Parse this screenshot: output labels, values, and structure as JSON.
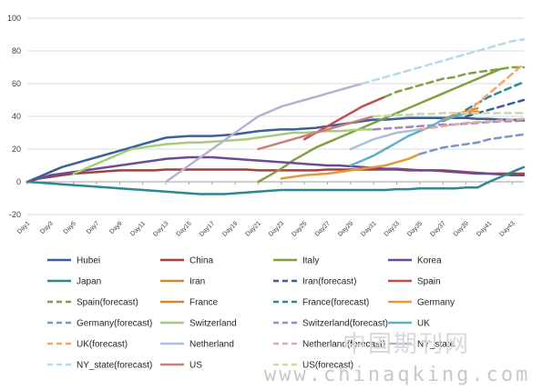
{
  "chart_data": {
    "type": "line",
    "title": "",
    "xlabel": "",
    "ylabel": "",
    "ylim": [
      -20,
      100
    ],
    "yticks": [
      -20,
      0,
      20,
      40,
      60,
      80,
      100
    ],
    "grid": true,
    "legend_position": "bottom",
    "x_tick_labels": [
      "Day1",
      "Day3",
      "Day5",
      "Day7",
      "Day9",
      "Day11",
      "Day13",
      "Day15",
      "Day17",
      "Day19",
      "Day21",
      "Day23",
      "Day25",
      "Day27",
      "Day29",
      "Day31",
      "Day33",
      "Day35",
      "Day37",
      "Day39",
      "Day41",
      "Day43"
    ],
    "x": [
      1,
      2,
      3,
      4,
      5,
      6,
      7,
      8,
      9,
      10,
      11,
      12,
      13,
      14,
      15,
      16,
      17,
      18,
      19,
      20,
      21,
      22,
      23,
      24,
      25,
      26,
      27,
      28,
      29,
      30,
      31,
      32,
      33,
      34,
      35,
      36,
      37,
      38,
      39,
      40,
      41,
      42,
      43,
      44
    ],
    "series": [
      {
        "name": "Hubei",
        "color": "#3a5f9a",
        "dashed": false,
        "values": [
          0,
          3,
          6,
          9,
          11,
          13,
          15,
          17,
          19,
          21,
          23,
          25,
          27,
          27.5,
          28,
          28,
          28,
          28.5,
          29,
          30,
          31,
          31.5,
          32,
          32,
          32.5,
          33,
          34,
          35,
          36,
          37,
          38,
          38,
          38.5,
          39,
          39,
          39,
          39,
          39,
          39,
          38.5,
          38.5,
          38,
          38,
          37.5
        ]
      },
      {
        "name": "China",
        "color": "#a5403c",
        "dashed": false,
        "values": [
          0,
          2,
          3,
          4,
          5,
          5.5,
          6,
          6.5,
          7,
          7,
          7,
          7,
          7.5,
          7.5,
          7.5,
          7.5,
          7.5,
          7.5,
          7.5,
          7.5,
          7,
          7,
          7,
          7,
          7,
          7,
          7.5,
          7.5,
          7.5,
          7.5,
          7.5,
          7.5,
          7.5,
          7,
          7,
          7,
          7,
          6.5,
          6,
          5.5,
          5,
          5,
          5,
          5
        ]
      },
      {
        "name": "Italy",
        "color": "#82a043",
        "dashed": false,
        "values": [
          null,
          null,
          null,
          null,
          null,
          null,
          null,
          null,
          null,
          null,
          null,
          null,
          null,
          null,
          null,
          null,
          null,
          null,
          null,
          null,
          0,
          4,
          8,
          13,
          17,
          21,
          24,
          27,
          30,
          33,
          36,
          39,
          42,
          45,
          48,
          51,
          54,
          57,
          60,
          63,
          66,
          69,
          null,
          null
        ]
      },
      {
        "name": "Korea",
        "color": "#6a4c93",
        "dashed": false,
        "values": [
          0,
          2,
          4,
          5,
          6,
          7,
          8,
          9,
          10,
          11,
          12,
          13,
          14,
          14.5,
          15,
          15,
          15,
          14.5,
          14,
          13.5,
          13,
          12.5,
          12,
          11.5,
          11,
          10.5,
          10,
          10,
          9.5,
          9,
          8.5,
          8,
          8,
          7.5,
          7,
          7,
          6.5,
          6,
          5.5,
          5,
          5,
          4.5,
          4,
          4
        ]
      },
      {
        "name": "Japan",
        "color": "#2b8a8f",
        "dashed": false,
        "values": [
          0,
          -0.5,
          -1,
          -1.5,
          -2,
          -2.5,
          -3,
          -3.5,
          -4,
          -4.5,
          -5,
          -5.5,
          -6,
          -6.5,
          -7,
          -7.5,
          -7.5,
          -7.5,
          -7,
          -6.5,
          -6,
          -5.5,
          -5,
          -5,
          -5,
          -5,
          -5,
          -5,
          -5,
          -5,
          -5,
          -5,
          -4.5,
          -4.5,
          -4,
          -4,
          -4,
          -4,
          -3.5,
          -3.5,
          0,
          3,
          6,
          9
        ]
      },
      {
        "name": "Iran",
        "color": "#d98633",
        "dashed": false,
        "values": [
          null,
          null,
          null,
          null,
          null,
          null,
          null,
          null,
          null,
          null,
          null,
          null,
          null,
          null,
          null,
          null,
          null,
          null,
          null,
          null,
          null,
          null,
          null,
          null,
          null,
          null,
          null,
          null,
          null,
          null,
          null,
          null,
          null,
          null,
          null,
          null,
          38,
          41,
          43,
          45,
          null,
          null,
          null,
          null
        ]
      },
      {
        "name": "Iran(forecast)",
        "color": "#3a5f9a",
        "dashed": true,
        "values": [
          null,
          null,
          null,
          null,
          null,
          null,
          null,
          null,
          null,
          null,
          null,
          null,
          null,
          null,
          null,
          null,
          null,
          null,
          null,
          null,
          null,
          null,
          null,
          null,
          null,
          null,
          null,
          null,
          null,
          null,
          null,
          null,
          null,
          null,
          null,
          null,
          null,
          null,
          40,
          42,
          44,
          46,
          48,
          50
        ]
      },
      {
        "name": "Spain",
        "color": "#c0504d",
        "dashed": false,
        "values": [
          null,
          null,
          null,
          null,
          null,
          null,
          null,
          null,
          null,
          null,
          null,
          null,
          null,
          null,
          null,
          null,
          null,
          null,
          null,
          null,
          null,
          null,
          null,
          null,
          26,
          30,
          34,
          38,
          42,
          46,
          49,
          52,
          null,
          null,
          null,
          null,
          null,
          null,
          null,
          null,
          null,
          null,
          null,
          null
        ]
      },
      {
        "name": "Spain(forecast)",
        "color": "#82a043",
        "dashed": true,
        "values": [
          null,
          null,
          null,
          null,
          null,
          null,
          null,
          null,
          null,
          null,
          null,
          null,
          null,
          null,
          null,
          null,
          null,
          null,
          null,
          null,
          null,
          null,
          null,
          null,
          null,
          null,
          null,
          null,
          null,
          null,
          null,
          52,
          55,
          57,
          59,
          61,
          63,
          64,
          66,
          67,
          68,
          69,
          70,
          70
        ]
      },
      {
        "name": "France",
        "color": "#d98633",
        "dashed": false,
        "values": [
          null,
          null,
          null,
          null,
          null,
          null,
          null,
          null,
          null,
          null,
          null,
          null,
          null,
          null,
          null,
          null,
          null,
          null,
          null,
          null,
          null,
          null,
          null,
          null,
          null,
          null,
          null,
          null,
          null,
          null,
          null,
          null,
          null,
          null,
          null,
          null,
          37,
          40,
          42,
          43,
          null,
          null,
          null,
          null
        ]
      },
      {
        "name": "France(forecast)",
        "color": "#2b8a8f",
        "dashed": true,
        "values": [
          null,
          null,
          null,
          null,
          null,
          null,
          null,
          null,
          null,
          null,
          null,
          null,
          null,
          null,
          null,
          null,
          null,
          null,
          null,
          null,
          null,
          null,
          null,
          null,
          null,
          null,
          null,
          null,
          null,
          null,
          null,
          null,
          null,
          null,
          null,
          null,
          null,
          null,
          44,
          48,
          52,
          55,
          58,
          61
        ]
      },
      {
        "name": "Germany",
        "color": "#e8963a",
        "dashed": false,
        "values": [
          null,
          null,
          null,
          null,
          null,
          null,
          null,
          null,
          null,
          null,
          null,
          null,
          null,
          null,
          null,
          null,
          null,
          null,
          null,
          null,
          null,
          null,
          2,
          3,
          4,
          4.5,
          5,
          6,
          7,
          8,
          9,
          10,
          12,
          14,
          17,
          null,
          null,
          null,
          null,
          null,
          null,
          null,
          null,
          null
        ]
      },
      {
        "name": "Germany(forecast)",
        "color": "#7a96c8",
        "dashed": true,
        "values": [
          null,
          null,
          null,
          null,
          null,
          null,
          null,
          null,
          null,
          null,
          null,
          null,
          null,
          null,
          null,
          null,
          null,
          null,
          null,
          null,
          null,
          null,
          null,
          null,
          null,
          null,
          null,
          null,
          null,
          null,
          null,
          null,
          null,
          null,
          17,
          19,
          21,
          22,
          23,
          24,
          26,
          27,
          28,
          29
        ]
      },
      {
        "name": "Switzerland",
        "color": "#a8cc7a",
        "dashed": false,
        "values": [
          null,
          null,
          null,
          null,
          5,
          8,
          11,
          14,
          17,
          20,
          21,
          22,
          23,
          23.5,
          24,
          24,
          24.5,
          25,
          25.5,
          26,
          27,
          28,
          29,
          30,
          30,
          30.5,
          31,
          31,
          31.5,
          32,
          32,
          null,
          null,
          null,
          null,
          null,
          null,
          null,
          null,
          null,
          null,
          null,
          null,
          null
        ]
      },
      {
        "name": "Switzerland(forecast)",
        "color": "#9e86c8",
        "dashed": true,
        "values": [
          null,
          null,
          null,
          null,
          null,
          null,
          null,
          null,
          null,
          null,
          null,
          null,
          null,
          null,
          null,
          null,
          null,
          null,
          null,
          null,
          null,
          null,
          null,
          null,
          null,
          null,
          null,
          null,
          null,
          null,
          32,
          32.5,
          33,
          33.5,
          34,
          34.5,
          35,
          35,
          35.5,
          36,
          36.5,
          37,
          37,
          37.5
        ]
      },
      {
        "name": "UK",
        "color": "#5bb1cc",
        "dashed": false,
        "values": [
          null,
          null,
          null,
          null,
          null,
          null,
          null,
          null,
          null,
          null,
          null,
          null,
          null,
          null,
          null,
          null,
          null,
          null,
          null,
          null,
          null,
          null,
          null,
          null,
          null,
          null,
          null,
          null,
          10,
          13,
          16,
          20,
          24,
          28,
          31,
          34,
          38,
          40,
          42,
          null,
          null,
          null,
          null,
          null
        ]
      },
      {
        "name": "UK(forecast)",
        "color": "#f4a46c",
        "dashed": true,
        "values": [
          null,
          null,
          null,
          null,
          null,
          null,
          null,
          null,
          null,
          null,
          null,
          null,
          null,
          null,
          null,
          null,
          null,
          null,
          null,
          null,
          null,
          null,
          null,
          null,
          null,
          null,
          null,
          null,
          null,
          null,
          null,
          null,
          null,
          null,
          null,
          null,
          null,
          null,
          42,
          48,
          54,
          60,
          66,
          72
        ]
      },
      {
        "name": "Netherland",
        "color": "#a8c0dc",
        "dashed": false,
        "values": [
          null,
          null,
          null,
          null,
          null,
          null,
          null,
          null,
          null,
          null,
          null,
          null,
          null,
          null,
          null,
          null,
          null,
          null,
          null,
          null,
          null,
          null,
          null,
          null,
          null,
          null,
          null,
          null,
          20,
          23,
          26,
          28,
          30,
          31,
          32,
          null,
          null,
          null,
          null,
          null,
          null,
          null,
          null,
          null
        ]
      },
      {
        "name": "Netherland(forecast)",
        "color": "#e3a8a6",
        "dashed": true,
        "values": [
          null,
          null,
          null,
          null,
          null,
          null,
          null,
          null,
          null,
          null,
          null,
          null,
          null,
          null,
          null,
          null,
          null,
          null,
          null,
          null,
          null,
          null,
          null,
          null,
          null,
          null,
          null,
          null,
          null,
          null,
          null,
          null,
          null,
          null,
          32,
          33,
          34,
          35,
          36,
          36.5,
          37,
          37.5,
          38,
          38.5
        ]
      },
      {
        "name": "NY_state",
        "color": "#b7b0d4",
        "dashed": false,
        "values": [
          null,
          null,
          null,
          null,
          null,
          null,
          null,
          null,
          null,
          null,
          null,
          null,
          0,
          5,
          10,
          15,
          20,
          25,
          30,
          35,
          40,
          43,
          46,
          48,
          50,
          52,
          54,
          56,
          58,
          60,
          null,
          null,
          null,
          null,
          null,
          null,
          null,
          null,
          null,
          null,
          null,
          null,
          null,
          null
        ]
      },
      {
        "name": "NY_state(forecast)",
        "color": "#b5dbe8",
        "dashed": true,
        "values": [
          null,
          null,
          null,
          null,
          null,
          null,
          null,
          null,
          null,
          null,
          null,
          null,
          null,
          null,
          null,
          null,
          null,
          null,
          null,
          null,
          null,
          null,
          null,
          null,
          null,
          null,
          null,
          null,
          null,
          60,
          62,
          64,
          66,
          68,
          70,
          72,
          74,
          76,
          78,
          80,
          82,
          84,
          86,
          87
        ]
      },
      {
        "name": "US",
        "color": "#c98078",
        "dashed": false,
        "values": [
          null,
          null,
          null,
          null,
          null,
          null,
          null,
          null,
          null,
          null,
          null,
          null,
          null,
          null,
          null,
          null,
          null,
          null,
          null,
          null,
          20,
          22,
          24,
          26,
          28,
          30,
          32,
          34,
          36,
          38,
          40,
          null,
          null,
          null,
          null,
          null,
          null,
          null,
          null,
          null,
          null,
          null,
          null,
          null
        ]
      },
      {
        "name": "US(forecast)",
        "color": "#c9dca8",
        "dashed": true,
        "values": [
          null,
          null,
          null,
          null,
          null,
          null,
          null,
          null,
          null,
          null,
          null,
          null,
          null,
          null,
          null,
          null,
          null,
          null,
          null,
          null,
          null,
          null,
          null,
          null,
          null,
          null,
          null,
          null,
          null,
          null,
          40,
          40.5,
          41,
          41,
          41.5,
          41.5,
          42,
          42,
          42,
          42,
          42,
          42,
          42,
          42
        ]
      }
    ]
  },
  "watermark": {
    "cn": "中国期刊网",
    "url": "www.chinaqking.com"
  }
}
